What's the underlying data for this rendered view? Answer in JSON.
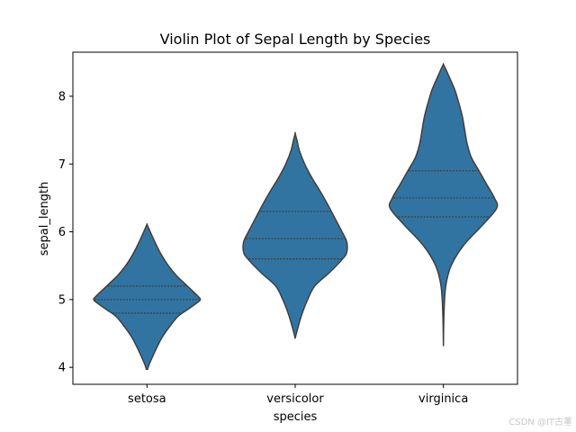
{
  "chart_data": {
    "type": "violin",
    "title": "Violin Plot of Sepal Length by Species",
    "xlabel": "species",
    "ylabel": "sepal_length",
    "categories": [
      "setosa",
      "versicolor",
      "virginica"
    ],
    "ylim": [
      3.75,
      8.65
    ],
    "yticks": [
      4,
      5,
      6,
      7,
      8
    ],
    "grid": false,
    "fill_color": "#3274a1",
    "edge_color": "#3f3f3f",
    "violins": [
      {
        "category": "setosa",
        "min": 3.97,
        "max": 6.11,
        "quartiles": [
          4.8,
          5.0,
          5.2
        ],
        "density_profile": [
          [
            3.97,
            0.01
          ],
          [
            4.05,
            0.04
          ],
          [
            4.15,
            0.09
          ],
          [
            4.3,
            0.17
          ],
          [
            4.45,
            0.26
          ],
          [
            4.6,
            0.38
          ],
          [
            4.75,
            0.52
          ],
          [
            4.85,
            0.68
          ],
          [
            4.95,
            0.84
          ],
          [
            5.0,
            0.9
          ],
          [
            5.05,
            0.86
          ],
          [
            5.15,
            0.74
          ],
          [
            5.25,
            0.62
          ],
          [
            5.35,
            0.5
          ],
          [
            5.5,
            0.36
          ],
          [
            5.65,
            0.25
          ],
          [
            5.8,
            0.16
          ],
          [
            5.95,
            0.08
          ],
          [
            6.05,
            0.03
          ],
          [
            6.11,
            0.0
          ]
        ]
      },
      {
        "category": "versicolor",
        "min": 4.43,
        "max": 7.45,
        "quartiles": [
          5.6,
          5.9,
          6.3
        ],
        "density_profile": [
          [
            4.43,
            0.0
          ],
          [
            4.6,
            0.05
          ],
          [
            4.8,
            0.12
          ],
          [
            5.0,
            0.21
          ],
          [
            5.2,
            0.33
          ],
          [
            5.4,
            0.58
          ],
          [
            5.6,
            0.8
          ],
          [
            5.7,
            0.87
          ],
          [
            5.85,
            0.87
          ],
          [
            6.0,
            0.79
          ],
          [
            6.2,
            0.67
          ],
          [
            6.4,
            0.55
          ],
          [
            6.6,
            0.42
          ],
          [
            6.8,
            0.28
          ],
          [
            7.0,
            0.16
          ],
          [
            7.2,
            0.07
          ],
          [
            7.35,
            0.03
          ],
          [
            7.45,
            0.0
          ]
        ]
      },
      {
        "category": "virginica",
        "min": 4.32,
        "max": 8.47,
        "quartiles": [
          6.22,
          6.5,
          6.9
        ],
        "density_profile": [
          [
            4.32,
            0.0
          ],
          [
            4.8,
            0.01
          ],
          [
            5.2,
            0.04
          ],
          [
            5.5,
            0.13
          ],
          [
            5.8,
            0.34
          ],
          [
            6.1,
            0.66
          ],
          [
            6.35,
            0.9
          ],
          [
            6.5,
            0.86
          ],
          [
            6.7,
            0.73
          ],
          [
            6.9,
            0.6
          ],
          [
            7.1,
            0.47
          ],
          [
            7.3,
            0.4
          ],
          [
            7.5,
            0.36
          ],
          [
            7.7,
            0.32
          ],
          [
            7.9,
            0.26
          ],
          [
            8.1,
            0.19
          ],
          [
            8.3,
            0.09
          ],
          [
            8.4,
            0.04
          ],
          [
            8.47,
            0.0
          ]
        ]
      }
    ]
  },
  "watermark": "CSDN @IT古董"
}
